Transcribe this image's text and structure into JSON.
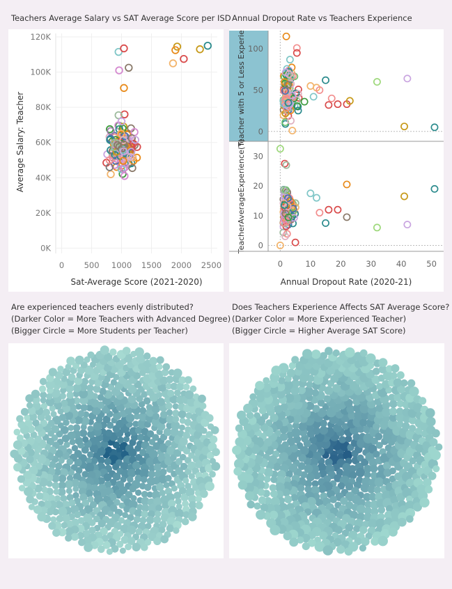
{
  "dashboard": {
    "scatter_title": "Teachers Average Salary vs SAT Average Score per ISD",
    "dropout_title": "Annual Dropout Rate vs Teachers Experience",
    "pack1_title": "Are experienced teachers evenly distributed?",
    "pack1_note1": "(Darker Color = More Teachers with Advanced Degree)",
    "pack1_note2": "(Bigger Circle = More Students per Teacher)",
    "pack2_title": "Does Teachers Experience Affects SAT Average Score?",
    "pack2_note1": "(Darker Color = More Experienced Teacher)",
    "pack2_note2": "(Bigger Circle = Higher Average SAT Score)"
  },
  "chart_data": [
    {
      "type": "scatter",
      "xlabel": "Sat-Average Score (2021-2020)",
      "ylabel": "Average Salary: Teacher",
      "xlim": [
        -100,
        2600
      ],
      "ylim": [
        -3000,
        122000
      ],
      "x_ticks": [
        {
          "v": 0,
          "label": "0"
        },
        {
          "v": 500,
          "label": "500"
        },
        {
          "v": 1000,
          "label": "1000"
        },
        {
          "v": 1500,
          "label": "1500"
        },
        {
          "v": 2000,
          "label": "2000"
        },
        {
          "v": 2500,
          "label": "2500"
        }
      ],
      "y_ticks": [
        {
          "v": 0,
          "label": "0K"
        },
        {
          "v": 20000,
          "label": "20K"
        },
        {
          "v": 40000,
          "label": "40K"
        },
        {
          "v": 60000,
          "label": "60K"
        },
        {
          "v": 80000,
          "label": "80K"
        },
        {
          "v": 100000,
          "label": "100K"
        },
        {
          "v": 120000,
          "label": "120K"
        }
      ],
      "grid": true,
      "points": [
        {
          "x": 2440,
          "y": 115000,
          "c": "#2a8a8c"
        },
        {
          "x": 2310,
          "y": 113000,
          "c": "#c79a1a"
        },
        {
          "x": 1930,
          "y": 114500,
          "c": "#c79a1a"
        },
        {
          "x": 1900,
          "y": 112500,
          "c": "#e88a1a"
        },
        {
          "x": 1860,
          "y": 105000,
          "c": "#f3b46b"
        },
        {
          "x": 2040,
          "y": 107500,
          "c": "#d94b4b"
        },
        {
          "x": 950,
          "y": 111500,
          "c": "#7fc6c7"
        },
        {
          "x": 1040,
          "y": 113500,
          "c": "#d94b4b"
        },
        {
          "x": 960,
          "y": 101000,
          "c": "#d58ad0"
        },
        {
          "x": 1120,
          "y": 102500,
          "c": "#8a7a6a"
        },
        {
          "x": 1040,
          "y": 91000,
          "c": "#e88a1a"
        },
        {
          "x": 1050,
          "y": 76000,
          "c": "#d94b4b"
        },
        {
          "x": 950,
          "y": 75500,
          "c": "#9dba9d"
        },
        {
          "x": 1000,
          "y": 72000,
          "c": "#c9a4e0"
        },
        {
          "x": 1260,
          "y": 57500,
          "c": "#d94b4b"
        },
        {
          "x": 1230,
          "y": 61500,
          "c": "#c9a4e0"
        },
        {
          "x": 1180,
          "y": 45500,
          "c": "#8a7a6a"
        },
        {
          "x": 1050,
          "y": 41000,
          "c": "#d58ad0"
        },
        {
          "x": 820,
          "y": 42000,
          "c": "#f3b46b"
        },
        {
          "x": 800,
          "y": 46000,
          "c": "#7a7a7a"
        },
        {
          "x": 800,
          "y": 50000,
          "c": "#f28e8e"
        },
        {
          "x": 820,
          "y": 66500,
          "c": "#9d7aa8"
        }
      ],
      "cluster": {
        "x_center": 1010,
        "x_spread": 160,
        "y_center": 56500,
        "y_spread": 6500,
        "count": 170,
        "colors": [
          "#2a8a8c",
          "#7fc6c7",
          "#c79a1a",
          "#e88a1a",
          "#f3b46b",
          "#d94b4b",
          "#f28e8e",
          "#9dba9d",
          "#3c9a3c",
          "#d58ad0",
          "#c9a4e0",
          "#8a7a6a",
          "#4a6fb0",
          "#e0b0c0"
        ]
      }
    },
    {
      "type": "scatter",
      "facets": 2,
      "xlabel": "Annual Dropout Rate (2020-21)",
      "xlim": [
        -4,
        54
      ],
      "x_ticks": [
        {
          "v": 0,
          "label": "0"
        },
        {
          "v": 10,
          "label": "10"
        },
        {
          "v": 20,
          "label": "20"
        },
        {
          "v": 30,
          "label": "30"
        },
        {
          "v": 40,
          "label": "40"
        },
        {
          "v": 50,
          "label": "50"
        }
      ],
      "top": {
        "ylabel": "Teacher with 5 or Less Experie..",
        "ylim": [
          -12,
          122
        ],
        "y_ticks": [
          {
            "v": 0,
            "label": "0"
          },
          {
            "v": 50,
            "label": "50"
          },
          {
            "v": 100,
            "label": "100"
          }
        ],
        "points": [
          {
            "x": 2,
            "y": 115,
            "c": "#e88a1a"
          },
          {
            "x": 5.5,
            "y": 101,
            "c": "#f28e8e"
          },
          {
            "x": 5.5,
            "y": 95,
            "c": "#d94b4b"
          },
          {
            "x": 15,
            "y": 62,
            "c": "#2a8a8c"
          },
          {
            "x": 32,
            "y": 60,
            "c": "#9dd87a"
          },
          {
            "x": 42,
            "y": 64,
            "c": "#c9a4e0"
          },
          {
            "x": 10,
            "y": 55,
            "c": "#f3b46b"
          },
          {
            "x": 12,
            "y": 53,
            "c": "#f3b46b"
          },
          {
            "x": 13,
            "y": 50,
            "c": "#f28e8e"
          },
          {
            "x": 16,
            "y": 32,
            "c": "#d94b4b"
          },
          {
            "x": 17,
            "y": 40,
            "c": "#f28e8e"
          },
          {
            "x": 19,
            "y": 33,
            "c": "#d94b4b"
          },
          {
            "x": 22,
            "y": 33,
            "c": "#d94b4b"
          },
          {
            "x": 23,
            "y": 37,
            "c": "#c79a1a"
          },
          {
            "x": 11,
            "y": 42,
            "c": "#7fc6c7"
          },
          {
            "x": 8,
            "y": 36,
            "c": "#3c9a3c"
          },
          {
            "x": 41,
            "y": 6,
            "c": "#c79a1a"
          },
          {
            "x": 51,
            "y": 5,
            "c": "#2a8a8c"
          },
          {
            "x": 4,
            "y": 1,
            "c": "#f3b46b"
          }
        ],
        "cluster": {
          "x_center": 2.5,
          "x_spread": 1.8,
          "y_center": 42,
          "y_spread": 22,
          "count": 110
        }
      },
      "bottom": {
        "ylabel": "TeacherAverageExperience(Y)",
        "ylim": [
          -2,
          35
        ],
        "y_ticks": [
          {
            "v": 0,
            "label": "0"
          },
          {
            "v": 10,
            "label": "10"
          },
          {
            "v": 20,
            "label": "20"
          },
          {
            "v": 30,
            "label": "30"
          }
        ],
        "points": [
          {
            "x": 0,
            "y": 32.5,
            "c": "#9dd87a"
          },
          {
            "x": 1.5,
            "y": 27.5,
            "c": "#d94b4b"
          },
          {
            "x": 2,
            "y": 27,
            "c": "#9dba9d"
          },
          {
            "x": 22,
            "y": 20.5,
            "c": "#e88a1a"
          },
          {
            "x": 51,
            "y": 19,
            "c": "#2a8a8c"
          },
          {
            "x": 41,
            "y": 16.5,
            "c": "#c79a1a"
          },
          {
            "x": 10,
            "y": 17.5,
            "c": "#7fc6c7"
          },
          {
            "x": 12,
            "y": 16,
            "c": "#7fc6c7"
          },
          {
            "x": 16,
            "y": 12,
            "c": "#d94b4b"
          },
          {
            "x": 19,
            "y": 12,
            "c": "#d94b4b"
          },
          {
            "x": 22,
            "y": 9.5,
            "c": "#8a7a6a"
          },
          {
            "x": 15,
            "y": 7.5,
            "c": "#2a8a8c"
          },
          {
            "x": 32,
            "y": 6,
            "c": "#9dd87a"
          },
          {
            "x": 42,
            "y": 7,
            "c": "#c9a4e0"
          },
          {
            "x": 13,
            "y": 11,
            "c": "#f28e8e"
          },
          {
            "x": 0,
            "y": 0,
            "c": "#f3b46b"
          },
          {
            "x": 5,
            "y": 1,
            "c": "#d94b4b"
          }
        ],
        "cluster": {
          "x_center": 2.5,
          "x_spread": 1.8,
          "y_center": 12,
          "y_spread": 5,
          "count": 110
        }
      }
    },
    {
      "type": "packed-bubble",
      "count": 780,
      "color_light": "#a8dcd3",
      "color_dark": "#1f5f85",
      "radius_range": [
        3.2,
        6.8
      ]
    },
    {
      "type": "packed-bubble",
      "count": 700,
      "color_light": "#9fd8cf",
      "color_dark": "#245c86",
      "radius_range": [
        3.6,
        7.5
      ]
    }
  ]
}
